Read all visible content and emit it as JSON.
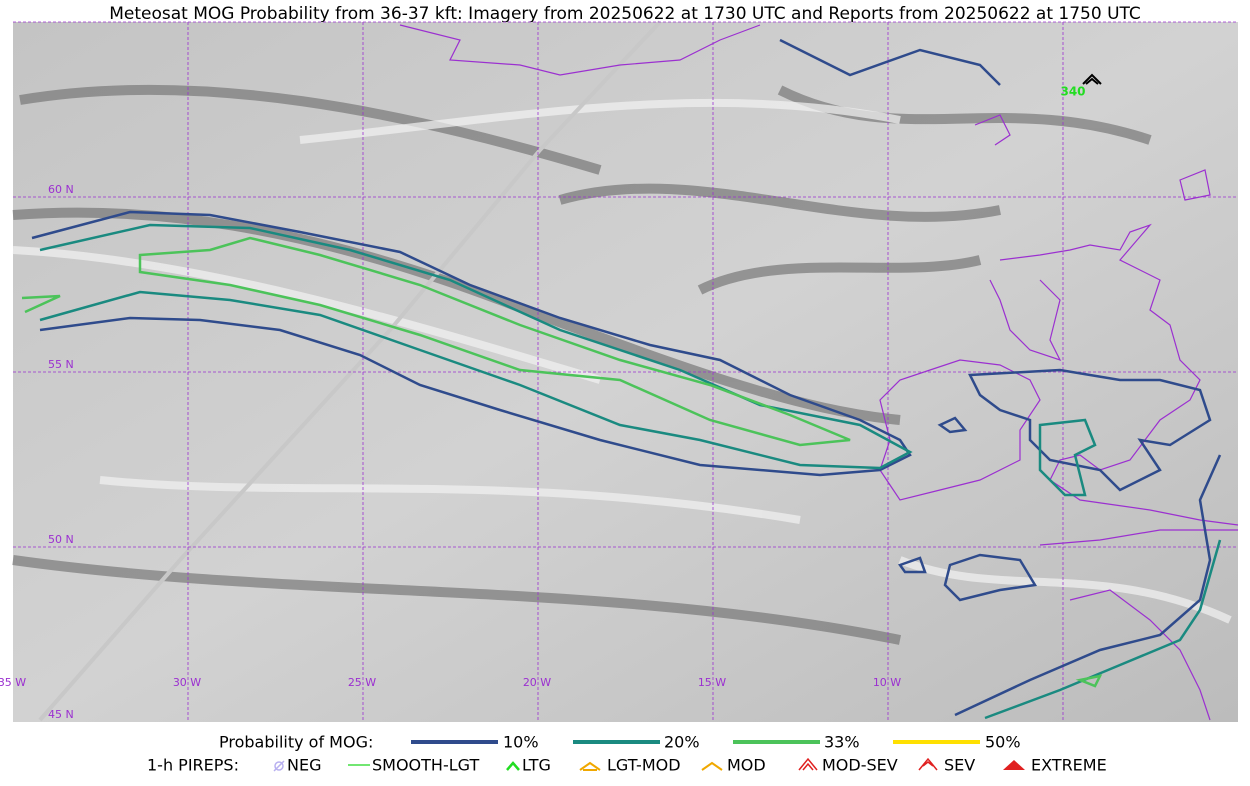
{
  "title": "Meteosat MOG Probability from 36-37 kft: Imagery from 20250622 at 1730 UTC and Reports from 20250622 at 1750 UTC",
  "map": {
    "lat_labels": [
      "60 N",
      "55 N",
      "50 N",
      "45 N"
    ],
    "lon_labels": [
      "35 W",
      "30 W",
      "25 W",
      "20 W",
      "15 W",
      "10 W"
    ],
    "pirep_labels": [
      "340"
    ]
  },
  "legend": {
    "probability": {
      "title": "Probability of MOG:",
      "items": [
        "10%",
        "20%",
        "33%",
        "50%"
      ]
    },
    "pireps": {
      "title": "1-h PIREPS:",
      "items": [
        "NEG",
        "SMOOTH-LGT",
        "LTG",
        "LGT-MOD",
        "MOD",
        "MOD-SEV",
        "SEV",
        "EXTREME"
      ]
    }
  }
}
